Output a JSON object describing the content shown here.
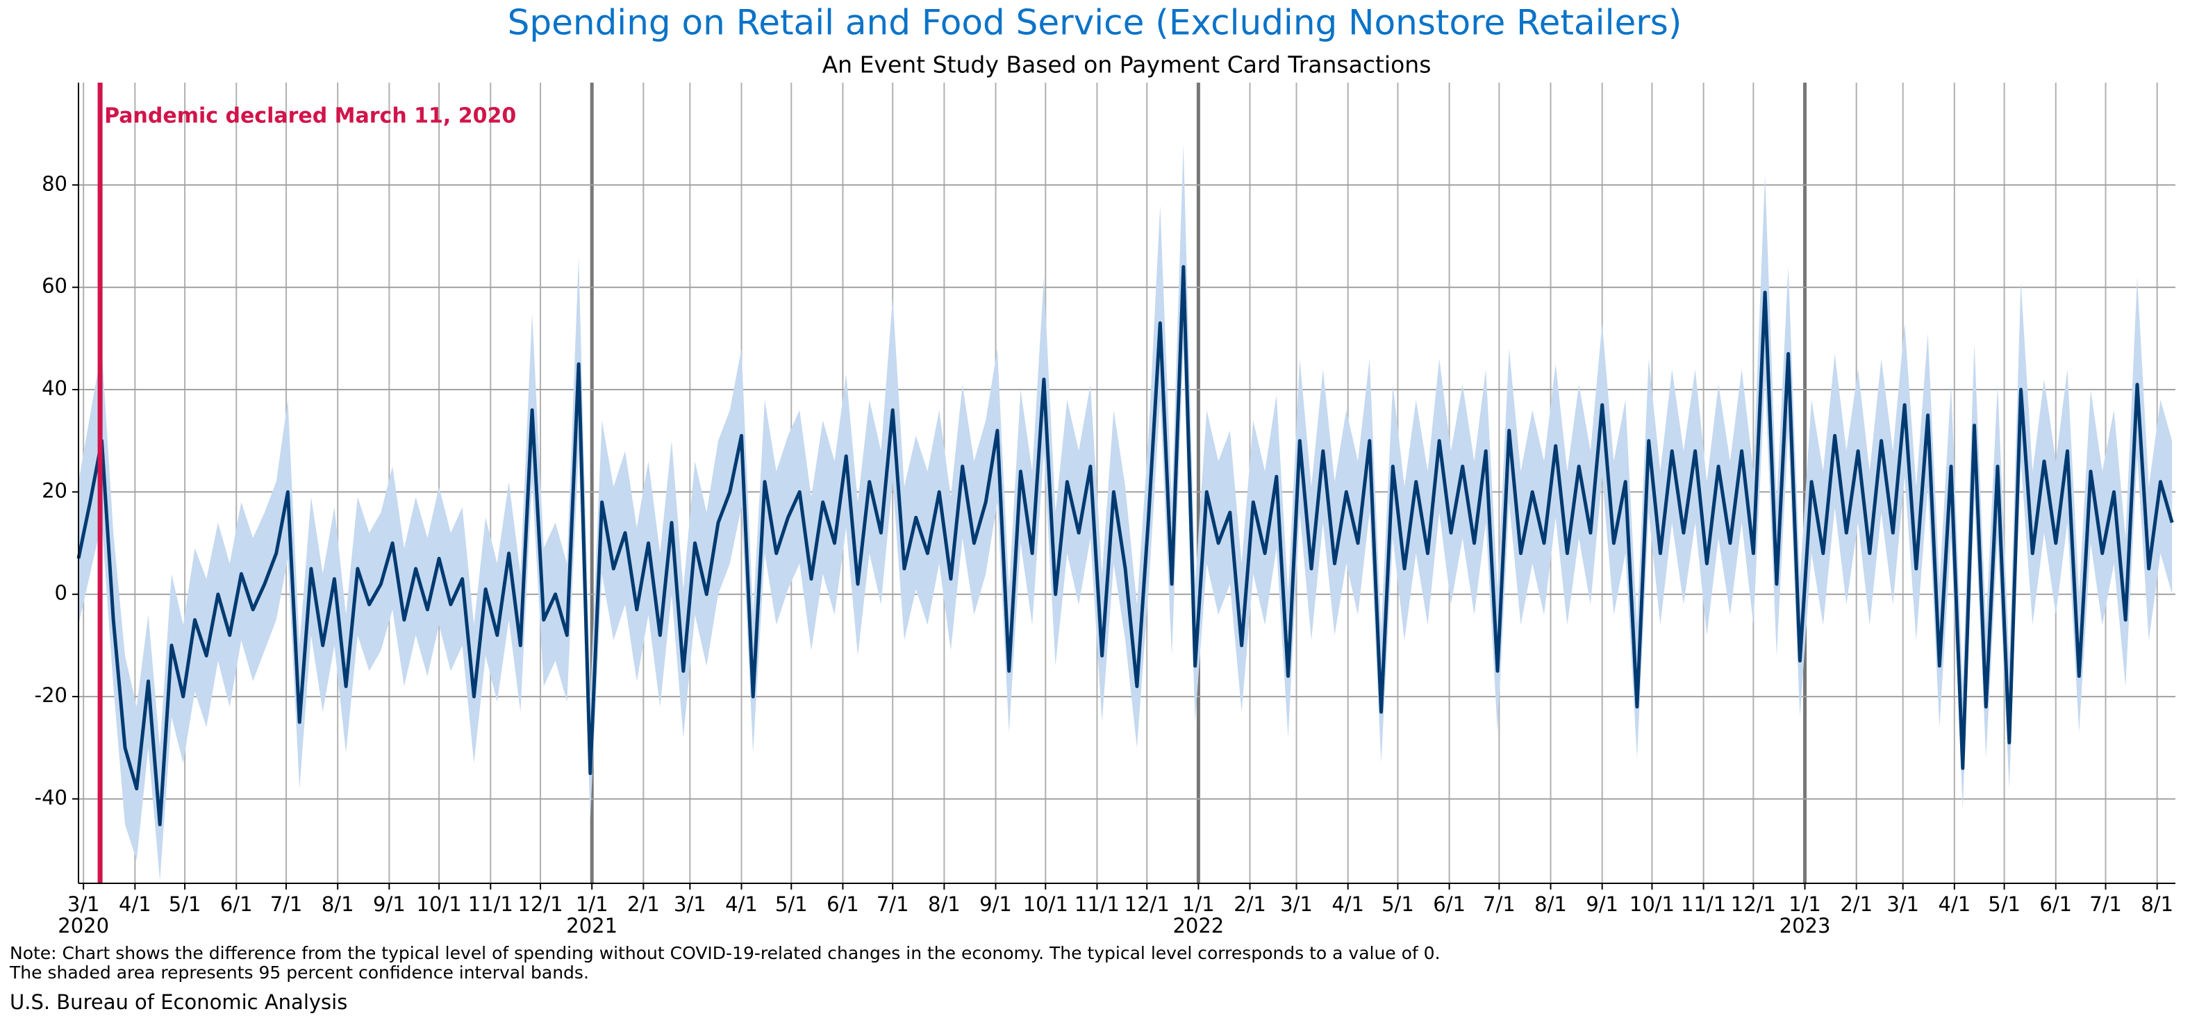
{
  "chart_data": {
    "type": "line",
    "title": "Spending on Retail and Food Service (Excluding Nonstore Retailers)",
    "subtitle": "An Event Study Based on Payment Card Transactions",
    "note": [
      "Note: Chart shows the difference from the typical level of spending without COVID-19-related changes in the economy. The typical level corresponds to a value of 0.",
      "The shaded area represents 95 percent confidence interval bands."
    ],
    "source": "U.S. Bureau of Economic Analysis",
    "annotation": {
      "x": "2020-03-11",
      "text": "Pandemic declared March 11, 2020",
      "color": "#d1144a"
    },
    "color": "#003a70",
    "band_color": "#c5d9f0",
    "xlim": [
      "2020-02-27",
      "2023-08-12"
    ],
    "ylim": [
      -56.5,
      100
    ],
    "yticks": [
      -40,
      -20,
      0,
      20,
      40,
      60,
      80
    ],
    "grid": true,
    "xticks": [
      {
        "value": "2020-03-01",
        "label": "3/1"
      },
      {
        "value": "2020-04-01",
        "label": "4/1"
      },
      {
        "value": "2020-05-01",
        "label": "5/1"
      },
      {
        "value": "2020-06-01",
        "label": "6/1"
      },
      {
        "value": "2020-07-01",
        "label": "7/1"
      },
      {
        "value": "2020-08-01",
        "label": "8/1"
      },
      {
        "value": "2020-09-01",
        "label": "9/1"
      },
      {
        "value": "2020-10-01",
        "label": "10/1"
      },
      {
        "value": "2020-11-01",
        "label": "11/1"
      },
      {
        "value": "2020-12-01",
        "label": "12/1"
      },
      {
        "value": "2021-01-01",
        "label": "1/1"
      },
      {
        "value": "2021-02-01",
        "label": "2/1"
      },
      {
        "value": "2021-03-01",
        "label": "3/1"
      },
      {
        "value": "2021-04-01",
        "label": "4/1"
      },
      {
        "value": "2021-05-01",
        "label": "5/1"
      },
      {
        "value": "2021-06-01",
        "label": "6/1"
      },
      {
        "value": "2021-07-01",
        "label": "7/1"
      },
      {
        "value": "2021-08-01",
        "label": "8/1"
      },
      {
        "value": "2021-09-01",
        "label": "9/1"
      },
      {
        "value": "2021-10-01",
        "label": "10/1"
      },
      {
        "value": "2021-11-01",
        "label": "11/1"
      },
      {
        "value": "2021-12-01",
        "label": "12/1"
      },
      {
        "value": "2022-01-01",
        "label": "1/1"
      },
      {
        "value": "2022-02-01",
        "label": "2/1"
      },
      {
        "value": "2022-03-01",
        "label": "3/1"
      },
      {
        "value": "2022-04-01",
        "label": "4/1"
      },
      {
        "value": "2022-05-01",
        "label": "5/1"
      },
      {
        "value": "2022-06-01",
        "label": "6/1"
      },
      {
        "value": "2022-07-01",
        "label": "7/1"
      },
      {
        "value": "2022-08-01",
        "label": "8/1"
      },
      {
        "value": "2022-09-01",
        "label": "9/1"
      },
      {
        "value": "2022-10-01",
        "label": "10/1"
      },
      {
        "value": "2022-11-01",
        "label": "11/1"
      },
      {
        "value": "2022-12-01",
        "label": "12/1"
      },
      {
        "value": "2023-01-01",
        "label": "1/1"
      },
      {
        "value": "2023-02-01",
        "label": "2/1"
      },
      {
        "value": "2023-03-01",
        "label": "3/1"
      },
      {
        "value": "2023-04-01",
        "label": "4/1"
      },
      {
        "value": "2023-05-01",
        "label": "5/1"
      },
      {
        "value": "2023-06-01",
        "label": "6/1"
      },
      {
        "value": "2023-07-01",
        "label": "7/1"
      },
      {
        "value": "2023-08-01",
        "label": "8/1"
      }
    ],
    "year_labels": [
      {
        "value": "2020-03-01",
        "label": "2020"
      },
      {
        "value": "2021-01-01",
        "label": "2021"
      },
      {
        "value": "2022-01-01",
        "label": "2022"
      },
      {
        "value": "2023-01-01",
        "label": "2023"
      }
    ],
    "x": [
      "2020-02-27",
      "2020-03-05",
      "2020-03-12",
      "2020-03-19",
      "2020-03-26",
      "2020-04-02",
      "2020-04-09",
      "2020-04-16",
      "2020-04-23",
      "2020-04-30",
      "2020-05-07",
      "2020-05-14",
      "2020-05-21",
      "2020-05-28",
      "2020-06-04",
      "2020-06-11",
      "2020-06-18",
      "2020-06-25",
      "2020-07-02",
      "2020-07-09",
      "2020-07-16",
      "2020-07-23",
      "2020-07-30",
      "2020-08-06",
      "2020-08-13",
      "2020-08-20",
      "2020-08-27",
      "2020-09-03",
      "2020-09-10",
      "2020-09-17",
      "2020-09-24",
      "2020-10-01",
      "2020-10-08",
      "2020-10-15",
      "2020-10-22",
      "2020-10-29",
      "2020-11-05",
      "2020-11-12",
      "2020-11-19",
      "2020-11-26",
      "2020-12-03",
      "2020-12-10",
      "2020-12-17",
      "2020-12-24",
      "2020-12-31",
      "2021-01-07",
      "2021-01-14",
      "2021-01-21",
      "2021-01-28",
      "2021-02-04",
      "2021-02-11",
      "2021-02-18",
      "2021-02-25",
      "2021-03-04",
      "2021-03-11",
      "2021-03-18",
      "2021-03-25",
      "2021-04-01",
      "2021-04-08",
      "2021-04-15",
      "2021-04-22",
      "2021-04-29",
      "2021-05-06",
      "2021-05-13",
      "2021-05-20",
      "2021-05-27",
      "2021-06-03",
      "2021-06-10",
      "2021-06-17",
      "2021-06-24",
      "2021-07-01",
      "2021-07-08",
      "2021-07-15",
      "2021-07-22",
      "2021-07-29",
      "2021-08-05",
      "2021-08-12",
      "2021-08-19",
      "2021-08-26",
      "2021-09-02",
      "2021-09-09",
      "2021-09-16",
      "2021-09-23",
      "2021-09-30",
      "2021-10-07",
      "2021-10-14",
      "2021-10-21",
      "2021-10-28",
      "2021-11-04",
      "2021-11-11",
      "2021-11-18",
      "2021-11-25",
      "2021-12-02",
      "2021-12-09",
      "2021-12-16",
      "2021-12-23",
      "2021-12-30",
      "2022-01-06",
      "2022-01-13",
      "2022-01-20",
      "2022-01-27",
      "2022-02-03",
      "2022-02-10",
      "2022-02-17",
      "2022-02-24",
      "2022-03-03",
      "2022-03-10",
      "2022-03-17",
      "2022-03-24",
      "2022-03-31",
      "2022-04-07",
      "2022-04-14",
      "2022-04-21",
      "2022-04-28",
      "2022-05-05",
      "2022-05-12",
      "2022-05-19",
      "2022-05-26",
      "2022-06-02",
      "2022-06-09",
      "2022-06-16",
      "2022-06-23",
      "2022-06-30",
      "2022-07-07",
      "2022-07-14",
      "2022-07-21",
      "2022-07-28",
      "2022-08-04",
      "2022-08-11",
      "2022-08-18",
      "2022-08-25",
      "2022-09-01",
      "2022-09-08",
      "2022-09-15",
      "2022-09-22",
      "2022-09-29",
      "2022-10-06",
      "2022-10-13",
      "2022-10-20",
      "2022-10-27",
      "2022-11-03",
      "2022-11-10",
      "2022-11-17",
      "2022-11-24",
      "2022-12-01",
      "2022-12-08",
      "2022-12-15",
      "2022-12-22",
      "2022-12-29",
      "2023-01-05",
      "2023-01-12",
      "2023-01-19",
      "2023-01-26",
      "2023-02-02",
      "2023-02-09",
      "2023-02-16",
      "2023-02-23",
      "2023-03-02",
      "2023-03-09",
      "2023-03-16",
      "2023-03-23",
      "2023-03-30",
      "2023-04-06",
      "2023-04-13",
      "2023-04-20",
      "2023-04-27",
      "2023-05-04",
      "2023-05-11",
      "2023-05-18",
      "2023-05-25",
      "2023-06-01",
      "2023-06-08",
      "2023-06-15",
      "2023-06-22",
      "2023-06-29",
      "2023-07-06",
      "2023-07-13",
      "2023-07-20",
      "2023-07-27",
      "2023-08-03",
      "2023-08-10"
    ],
    "values": [
      7,
      18,
      30,
      -5,
      -30,
      -38,
      -17,
      -45,
      -10,
      -20,
      -5,
      -12,
      0,
      -8,
      4,
      -3,
      2,
      8,
      20,
      -25,
      5,
      -10,
      3,
      -18,
      5,
      -2,
      2,
      10,
      -5,
      5,
      -3,
      7,
      -2,
      3,
      -20,
      1,
      -8,
      8,
      -10,
      36,
      -5,
      0,
      -8,
      45,
      -35,
      18,
      5,
      12,
      -3,
      10,
      -8,
      14,
      -15,
      10,
      0,
      14,
      20,
      31,
      -20,
      22,
      8,
      15,
      20,
      3,
      18,
      10,
      27,
      2,
      22,
      12,
      36,
      5,
      15,
      8,
      20,
      3,
      25,
      10,
      18,
      32,
      -15,
      24,
      8,
      42,
      0,
      22,
      12,
      25,
      -12,
      20,
      5,
      -18,
      15,
      53,
      2,
      64,
      -14,
      20,
      10,
      16,
      -10,
      18,
      8,
      23,
      -16,
      30,
      5,
      28,
      6,
      20,
      10,
      30,
      -23,
      25,
      5,
      22,
      8,
      30,
      12,
      25,
      10,
      28,
      -15,
      32,
      8,
      20,
      10,
      29,
      8,
      25,
      12,
      37,
      10,
      22,
      -22,
      30,
      8,
      28,
      12,
      28,
      6,
      25,
      10,
      28,
      8,
      59,
      2,
      47,
      -13,
      22,
      8,
      31,
      12,
      28,
      8,
      30,
      12,
      37,
      5,
      35,
      -14,
      25,
      -34,
      33,
      -22,
      25,
      -29,
      40,
      8,
      26,
      10,
      28,
      -16,
      24,
      8,
      20,
      -5,
      41,
      5,
      22,
      14
    ],
    "lower": [
      -6,
      4,
      14,
      -18,
      -45,
      -52,
      -30,
      -56,
      -24,
      -33,
      -19,
      -26,
      -13,
      -22,
      -9,
      -17,
      -11,
      -5,
      7,
      -38,
      -8,
      -23,
      -10,
      -31,
      -8,
      -15,
      -11,
      -3,
      -18,
      -8,
      -16,
      -6,
      -15,
      -10,
      -33,
      -12,
      -21,
      -5,
      -23,
      22,
      -18,
      -13,
      -21,
      28,
      -44,
      4,
      -9,
      -2,
      -17,
      -4,
      -22,
      0,
      -28,
      -4,
      -14,
      0,
      6,
      17,
      -31,
      8,
      -6,
      1,
      6,
      -11,
      4,
      -4,
      13,
      -12,
      8,
      -2,
      22,
      -9,
      1,
      -6,
      6,
      -11,
      11,
      -4,
      4,
      18,
      -27,
      10,
      -6,
      28,
      -14,
      8,
      -2,
      11,
      -25,
      6,
      -9,
      -30,
      1,
      38,
      -12,
      48,
      -25,
      6,
      -4,
      2,
      -23,
      4,
      -6,
      9,
      -28,
      16,
      -9,
      14,
      -8,
      6,
      -4,
      16,
      -33,
      11,
      -9,
      8,
      -6,
      16,
      -2,
      11,
      -4,
      14,
      -27,
      18,
      -6,
      6,
      -4,
      15,
      -6,
      11,
      -2,
      23,
      -4,
      8,
      -32,
      16,
      -6,
      14,
      -2,
      14,
      -8,
      11,
      -4,
      14,
      -6,
      42,
      -12,
      32,
      -24,
      8,
      -6,
      17,
      -2,
      14,
      -6,
      16,
      -2,
      23,
      -9,
      21,
      -26,
      11,
      -42,
      19,
      -32,
      11,
      -38,
      26,
      -6,
      12,
      -4,
      14,
      -27,
      10,
      -6,
      6,
      -18,
      27,
      -9,
      8,
      0
    ],
    "upper": [
      22,
      35,
      48,
      12,
      -12,
      -22,
      -4,
      -30,
      4,
      -6,
      9,
      3,
      14,
      6,
      18,
      11,
      16,
      22,
      38,
      -10,
      19,
      4,
      17,
      -4,
      19,
      12,
      16,
      25,
      9,
      19,
      11,
      21,
      12,
      17,
      -6,
      15,
      6,
      22,
      4,
      55,
      9,
      14,
      6,
      66,
      -20,
      34,
      21,
      28,
      13,
      26,
      8,
      30,
      1,
      26,
      16,
      30,
      36,
      48,
      -4,
      38,
      24,
      31,
      36,
      19,
      34,
      26,
      43,
      18,
      38,
      28,
      58,
      21,
      31,
      24,
      36,
      19,
      41,
      26,
      34,
      48,
      1,
      40,
      24,
      62,
      16,
      38,
      28,
      41,
      4,
      36,
      21,
      -2,
      31,
      76,
      18,
      88,
      2,
      36,
      26,
      32,
      6,
      34,
      24,
      39,
      0,
      46,
      21,
      44,
      22,
      36,
      26,
      46,
      -7,
      41,
      21,
      38,
      24,
      46,
      28,
      41,
      26,
      44,
      1,
      48,
      24,
      36,
      26,
      45,
      24,
      41,
      28,
      53,
      26,
      38,
      -6,
      46,
      24,
      44,
      28,
      44,
      22,
      41,
      26,
      44,
      24,
      82,
      18,
      64,
      3,
      38,
      24,
      47,
      28,
      44,
      24,
      46,
      28,
      53,
      21,
      51,
      2,
      41,
      -18,
      49,
      -6,
      41,
      -13,
      61,
      24,
      42,
      26,
      44,
      0,
      40,
      24,
      36,
      11,
      62,
      21,
      38,
      30
    ]
  }
}
